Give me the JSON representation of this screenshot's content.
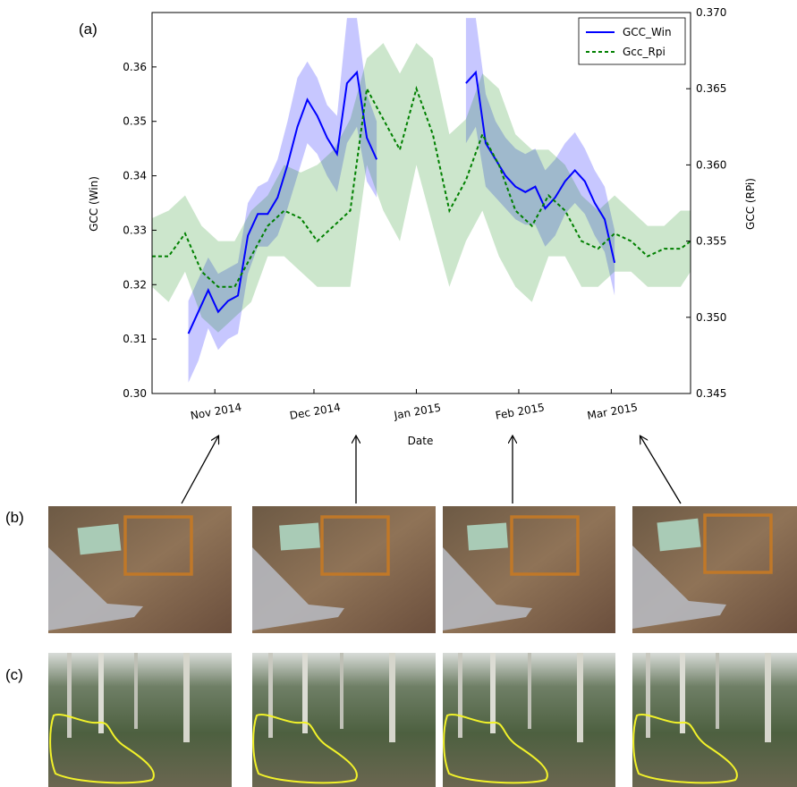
{
  "panel_labels": {
    "a": "(a)",
    "b": "(b)",
    "c": "(c)"
  },
  "chart_data": {
    "type": "line",
    "xlabel": "Date",
    "ylabel_left": "GCC (Win)",
    "ylabel_right": "GCC (RPi)",
    "ylim_left": [
      0.3,
      0.37
    ],
    "ylim_right": [
      0.345,
      0.37
    ],
    "xlim": [
      "2014-10-13",
      "2015-03-25"
    ],
    "x_ticks": [
      {
        "date": "2014-11-01",
        "label": "Nov 2014"
      },
      {
        "date": "2014-12-01",
        "label": "Dec 2014"
      },
      {
        "date": "2015-01-01",
        "label": "Jan 2015"
      },
      {
        "date": "2015-02-01",
        "label": "Feb 2015"
      },
      {
        "date": "2015-03-01",
        "label": "Mar 2015"
      }
    ],
    "yticks_left": [
      "0.30",
      "0.31",
      "0.32",
      "0.33",
      "0.34",
      "0.35",
      "0.36"
    ],
    "yticks_right": [
      "0.345",
      "0.350",
      "0.355",
      "0.360",
      "0.365",
      "0.370"
    ],
    "legend_position": "top-right",
    "series": [
      {
        "name": "GCC_Win",
        "axis": "left",
        "color": "#0000ff",
        "style": "solid",
        "x": [
          "2014-10-24",
          "2014-10-27",
          "2014-10-30",
          "2014-11-02",
          "2014-11-05",
          "2014-11-08",
          "2014-11-11",
          "2014-11-14",
          "2014-11-17",
          "2014-11-20",
          "2014-11-23",
          "2014-11-26",
          "2014-11-29",
          "2014-12-02",
          "2014-12-05",
          "2014-12-08",
          "2014-12-11",
          "2014-12-14",
          "2014-12-17",
          "2014-12-20",
          "2015-01-16",
          "2015-01-19",
          "2015-01-22",
          "2015-01-25",
          "2015-01-28",
          "2015-01-31",
          "2015-02-03",
          "2015-02-06",
          "2015-02-09",
          "2015-02-12",
          "2015-02-15",
          "2015-02-18",
          "2015-02-21",
          "2015-02-24",
          "2015-02-27",
          "2015-03-02"
        ],
        "y": [
          0.311,
          0.315,
          0.319,
          0.315,
          0.317,
          0.318,
          0.329,
          0.333,
          0.333,
          0.336,
          0.342,
          0.349,
          0.354,
          0.351,
          0.347,
          0.344,
          0.357,
          0.359,
          0.347,
          0.343,
          0.357,
          0.359,
          0.346,
          0.343,
          0.34,
          0.338,
          0.337,
          0.338,
          0.334,
          0.336,
          0.339,
          0.341,
          0.339,
          0.335,
          0.332,
          0.324
        ],
        "upper": [
          0.317,
          0.321,
          0.325,
          0.322,
          0.323,
          0.324,
          0.335,
          0.338,
          0.339,
          0.343,
          0.35,
          0.358,
          0.361,
          0.358,
          0.353,
          0.351,
          0.369,
          0.369,
          0.355,
          0.35,
          0.369,
          0.369,
          0.355,
          0.35,
          0.347,
          0.345,
          0.344,
          0.345,
          0.341,
          0.343,
          0.346,
          0.348,
          0.345,
          0.341,
          0.338,
          0.33
        ],
        "lower": [
          0.302,
          0.306,
          0.312,
          0.308,
          0.31,
          0.311,
          0.322,
          0.327,
          0.327,
          0.329,
          0.334,
          0.34,
          0.346,
          0.344,
          0.34,
          0.337,
          0.346,
          0.349,
          0.339,
          0.336,
          0.346,
          0.349,
          0.338,
          0.336,
          0.334,
          0.332,
          0.331,
          0.331,
          0.327,
          0.329,
          0.333,
          0.335,
          0.333,
          0.329,
          0.326,
          0.318
        ]
      },
      {
        "name": "Gcc_Rpi",
        "axis": "right",
        "color": "#008000",
        "style": "dashed",
        "x": [
          "2014-10-13",
          "2014-10-18",
          "2014-10-23",
          "2014-10-28",
          "2014-11-02",
          "2014-11-07",
          "2014-11-12",
          "2014-11-17",
          "2014-11-22",
          "2014-11-27",
          "2014-12-02",
          "2014-12-07",
          "2014-12-12",
          "2014-12-17",
          "2014-12-22",
          "2014-12-27",
          "2015-01-01",
          "2015-01-06",
          "2015-01-11",
          "2015-01-16",
          "2015-01-21",
          "2015-01-26",
          "2015-01-31",
          "2015-02-05",
          "2015-02-10",
          "2015-02-15",
          "2015-02-20",
          "2015-02-25",
          "2015-03-02",
          "2015-03-07",
          "2015-03-12",
          "2015-03-17",
          "2015-03-22",
          "2015-03-25"
        ],
        "y": [
          0.354,
          0.354,
          0.3555,
          0.353,
          0.352,
          0.352,
          0.354,
          0.356,
          0.357,
          0.3565,
          0.355,
          0.356,
          0.357,
          0.365,
          0.363,
          0.361,
          0.365,
          0.362,
          0.357,
          0.359,
          0.362,
          0.36,
          0.357,
          0.356,
          0.358,
          0.357,
          0.355,
          0.3545,
          0.3555,
          0.355,
          0.354,
          0.3545,
          0.3545,
          0.355
        ],
        "upper": [
          0.3565,
          0.357,
          0.358,
          0.356,
          0.355,
          0.355,
          0.357,
          0.358,
          0.36,
          0.3595,
          0.36,
          0.361,
          0.363,
          0.367,
          0.368,
          0.366,
          0.368,
          0.367,
          0.362,
          0.363,
          0.366,
          0.365,
          0.362,
          0.361,
          0.361,
          0.36,
          0.358,
          0.357,
          0.358,
          0.357,
          0.356,
          0.356,
          0.357,
          0.357
        ],
        "lower": [
          0.352,
          0.351,
          0.353,
          0.35,
          0.349,
          0.35,
          0.351,
          0.354,
          0.354,
          0.353,
          0.352,
          0.352,
          0.352,
          0.36,
          0.357,
          0.355,
          0.36,
          0.356,
          0.352,
          0.355,
          0.357,
          0.354,
          0.352,
          0.351,
          0.354,
          0.354,
          0.352,
          0.352,
          0.353,
          0.353,
          0.352,
          0.352,
          0.352,
          0.353
        ]
      }
    ],
    "arrow_dates": [
      "2014-11-05",
      "2014-12-21",
      "2015-02-06",
      "2015-03-08"
    ]
  },
  "photo_rows": {
    "b": {
      "panel_color": "#8a7255",
      "box_color": "#c07828"
    },
    "c": {
      "panel_color": "#55684a",
      "outline_color": "#f2f22a"
    }
  }
}
